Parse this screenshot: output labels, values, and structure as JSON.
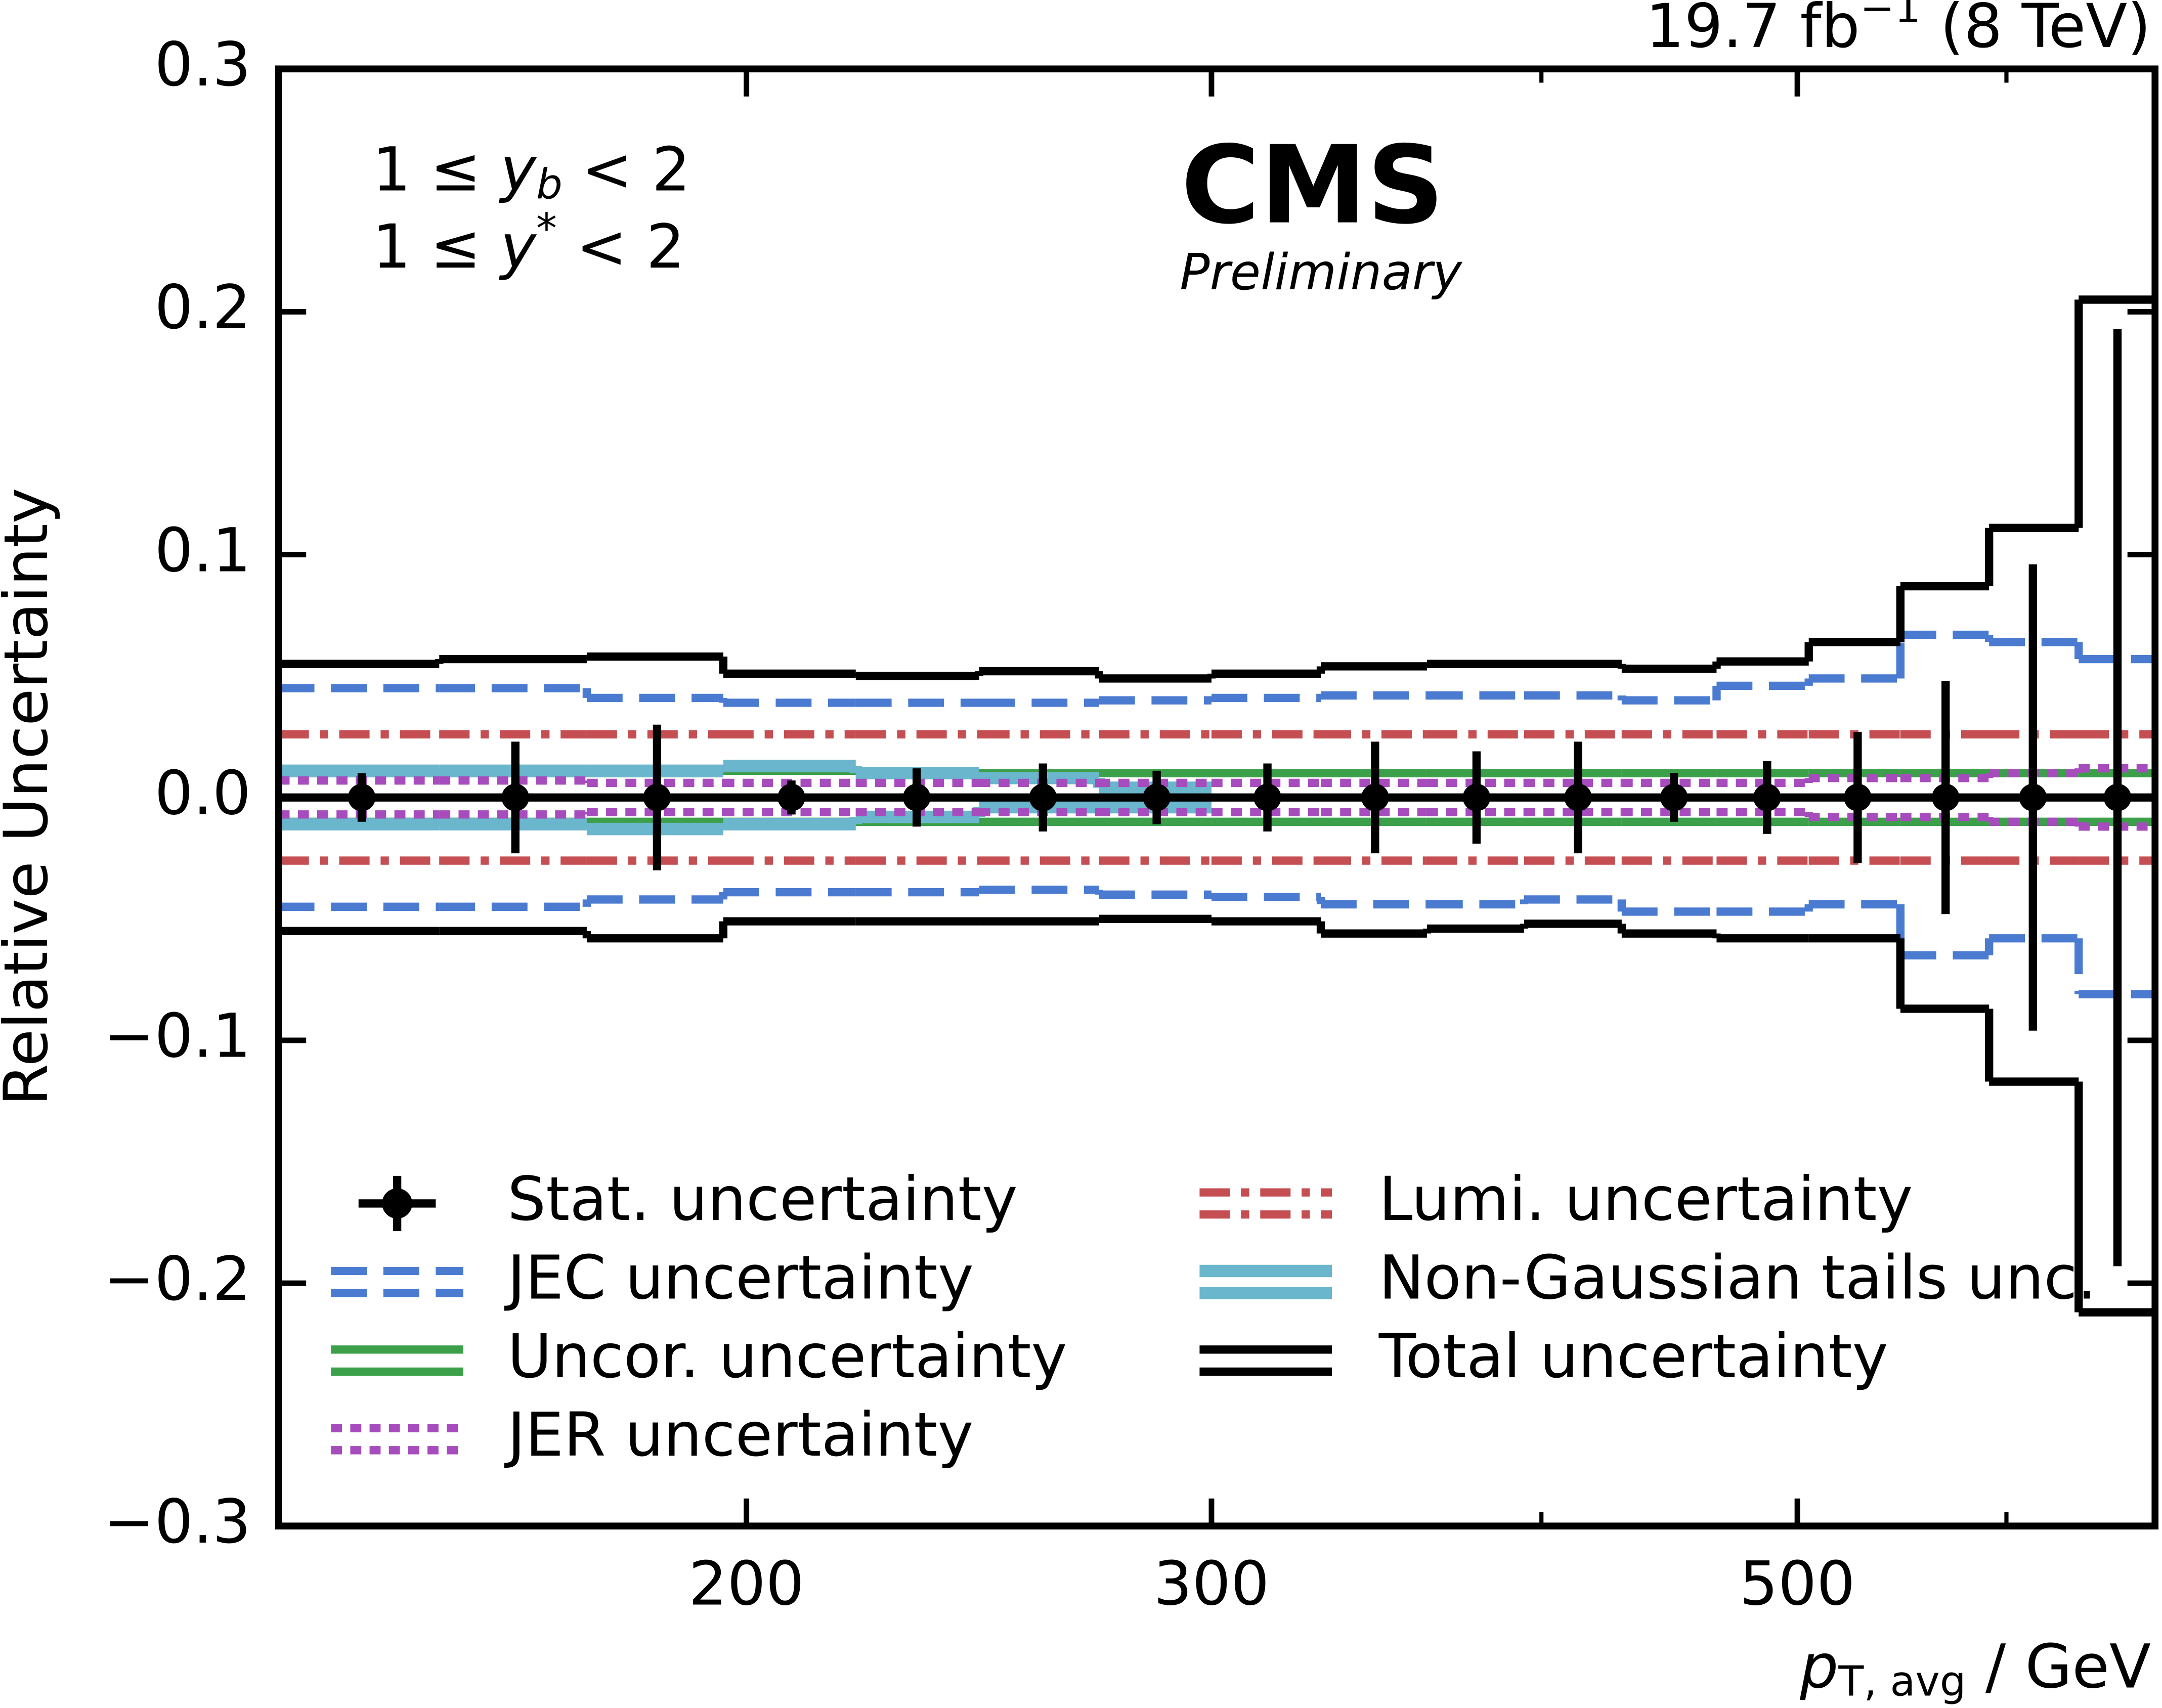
{
  "chart_data": {
    "type": "step",
    "experiment": "CMS",
    "status": "Preliminary",
    "lumi_text": "19.7 fb",
    "lumi_exponent": "−1",
    "energy_text": " (8 TeV)",
    "cut_labels": [
      [
        "1 ≤ ",
        "y",
        "b",
        " < 2"
      ],
      [
        "1 ≤ ",
        "y",
        "*",
        " < 2"
      ]
    ],
    "x_label": [
      "p",
      "T, avg",
      " / GeV"
    ],
    "y_label": "Relative Uncertainty",
    "xscale": "log",
    "xlim": [
      133,
      683
    ],
    "xticks": [
      200,
      300,
      500
    ],
    "xminorticks": [
      400,
      600
    ],
    "ylim": [
      -0.3,
      0.3
    ],
    "yticks": [
      {
        "value": -0.3,
        "label": "−0.3"
      },
      {
        "value": -0.2,
        "label": "−0.2"
      },
      {
        "value": -0.1,
        "label": "−0.1"
      },
      {
        "value": 0,
        "label": "0.0"
      },
      0.1,
      0.2,
      0.3
    ],
    "bins": [
      133,
      153,
      174,
      196,
      220,
      245,
      272,
      300,
      330,
      362,
      394,
      429,
      466,
      505,
      547,
      591,
      639,
      683
    ],
    "x": [
      143,
      163.5,
      185,
      208,
      232,
      259,
      286,
      315,
      346,
      378,
      413,
      449,
      487,
      527,
      569,
      614,
      661
    ],
    "stat": {
      "name": "Stat. uncertainty",
      "color": "#000000",
      "values": [
        0,
        0,
        0,
        0,
        0,
        0,
        0,
        0,
        0,
        0,
        0,
        0,
        0,
        0,
        0,
        0,
        0
      ],
      "errors": [
        0.01,
        0.023,
        0.03,
        0.007,
        0.012,
        0.014,
        0.011,
        0.014,
        0.023,
        0.019,
        0.023,
        0.01,
        0.015,
        0.027,
        0.048,
        0.096,
        0.193
      ]
    },
    "series": [
      {
        "name": "JEC uncertainty",
        "color": "#4a7bd0",
        "style": "dashed",
        "upper": [
          0.045,
          0.045,
          0.041,
          0.039,
          0.039,
          0.039,
          0.04,
          0.041,
          0.042,
          0.042,
          0.042,
          0.04,
          0.046,
          0.049,
          0.067,
          0.064,
          0.057
        ],
        "lower": [
          -0.045,
          -0.045,
          -0.042,
          -0.039,
          -0.039,
          -0.038,
          -0.04,
          -0.041,
          -0.044,
          -0.044,
          -0.042,
          -0.047,
          -0.047,
          -0.044,
          -0.065,
          -0.058,
          -0.081
        ]
      },
      {
        "name": "Uncor. uncertainty",
        "color": "#3ca04a",
        "style": "solid",
        "upper": [
          0.01,
          0.01,
          0.01,
          0.011,
          0.01,
          0.01,
          0.01,
          0.01,
          0.01,
          0.01,
          0.01,
          0.01,
          0.01,
          0.01,
          0.01,
          0.01,
          0.01
        ],
        "lower": [
          -0.01,
          -0.01,
          -0.01,
          -0.01,
          -0.01,
          -0.01,
          -0.01,
          -0.01,
          -0.01,
          -0.01,
          -0.01,
          -0.01,
          -0.01,
          -0.01,
          -0.01,
          -0.01,
          -0.01
        ]
      },
      {
        "name": "JER uncertainty",
        "color": "#a64cbd",
        "style": "dotted",
        "upper": [
          0.007,
          0.007,
          0.006,
          0.006,
          0.006,
          0.006,
          0.006,
          0.006,
          0.006,
          0.006,
          0.006,
          0.006,
          0.006,
          0.008,
          0.008,
          0.01,
          0.012
        ],
        "lower": [
          -0.007,
          -0.007,
          -0.006,
          -0.006,
          -0.006,
          -0.006,
          -0.006,
          -0.006,
          -0.006,
          -0.006,
          -0.006,
          -0.006,
          -0.006,
          -0.008,
          -0.008,
          -0.01,
          -0.012
        ]
      },
      {
        "name": "Lumi. uncertainty",
        "color": "#c44e52",
        "style": "dashdot",
        "upper": [
          0.026,
          0.026,
          0.026,
          0.026,
          0.026,
          0.026,
          0.026,
          0.026,
          0.026,
          0.026,
          0.026,
          0.026,
          0.026,
          0.026,
          0.026,
          0.026,
          0.026
        ],
        "lower": [
          -0.026,
          -0.026,
          -0.026,
          -0.026,
          -0.026,
          -0.026,
          -0.026,
          -0.026,
          -0.026,
          -0.026,
          -0.026,
          -0.026,
          -0.026,
          -0.026,
          -0.026,
          -0.026,
          -0.026
        ]
      },
      {
        "name": "Non-Gaussian tails unc.",
        "color": "#6ab6cc",
        "style": "thick",
        "upper": [
          0.011,
          0.011,
          0.011,
          0.013,
          0.01,
          0.008,
          0.004,
          null,
          null,
          null,
          null,
          null,
          null,
          null,
          null,
          null,
          null
        ],
        "lower": [
          -0.011,
          -0.011,
          -0.013,
          -0.011,
          -0.008,
          -0.004,
          -0.004,
          null,
          null,
          null,
          null,
          null,
          null,
          null,
          null,
          null,
          null
        ]
      },
      {
        "name": "Total uncertainty",
        "color": "#000000",
        "style": "solid",
        "upper": [
          0.055,
          0.057,
          0.058,
          0.051,
          0.05,
          0.052,
          0.049,
          0.051,
          0.054,
          0.055,
          0.055,
          0.053,
          0.056,
          0.064,
          0.087,
          0.111,
          0.205
        ],
        "lower": [
          -0.055,
          -0.055,
          -0.058,
          -0.051,
          -0.051,
          -0.051,
          -0.05,
          -0.051,
          -0.056,
          -0.054,
          -0.052,
          -0.056,
          -0.058,
          -0.058,
          -0.087,
          -0.117,
          -0.212
        ]
      }
    ]
  }
}
